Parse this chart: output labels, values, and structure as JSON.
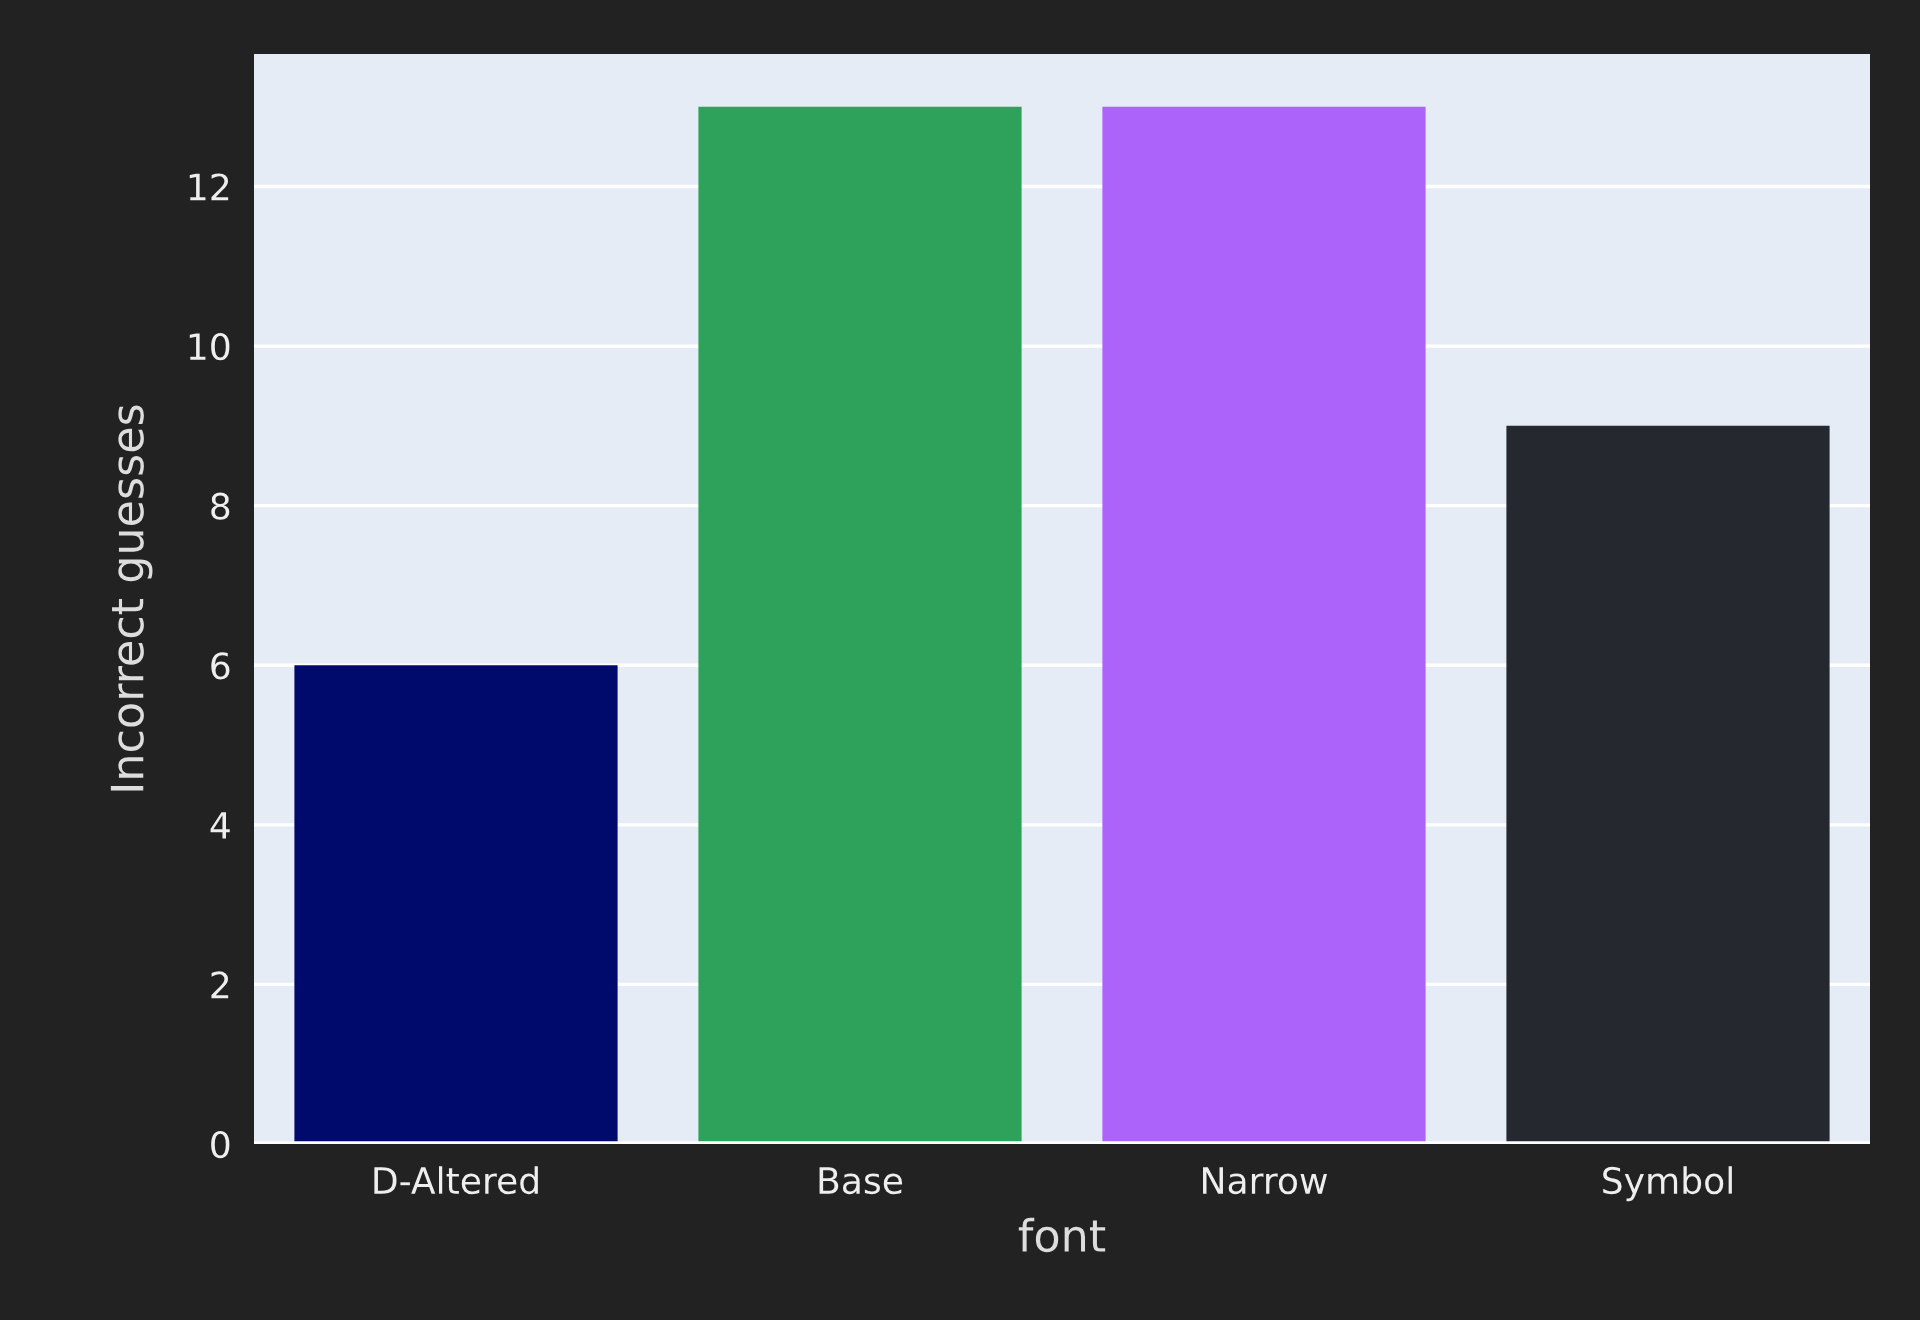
{
  "chart_data": {
    "type": "bar",
    "xlabel": "font",
    "ylabel": "Incorrect guesses",
    "categories": [
      "D-Altered",
      "Base",
      "Narrow",
      "Symbol"
    ],
    "values": [
      6,
      13,
      13,
      9
    ],
    "colors": [
      "#000a6c",
      "#2ea25a",
      "#ab63fa",
      "#25282e"
    ],
    "ylim": [
      0,
      13.66
    ],
    "yticks": [
      0,
      2,
      4,
      6,
      8,
      10,
      12
    ],
    "grid": "y",
    "legend": false
  }
}
